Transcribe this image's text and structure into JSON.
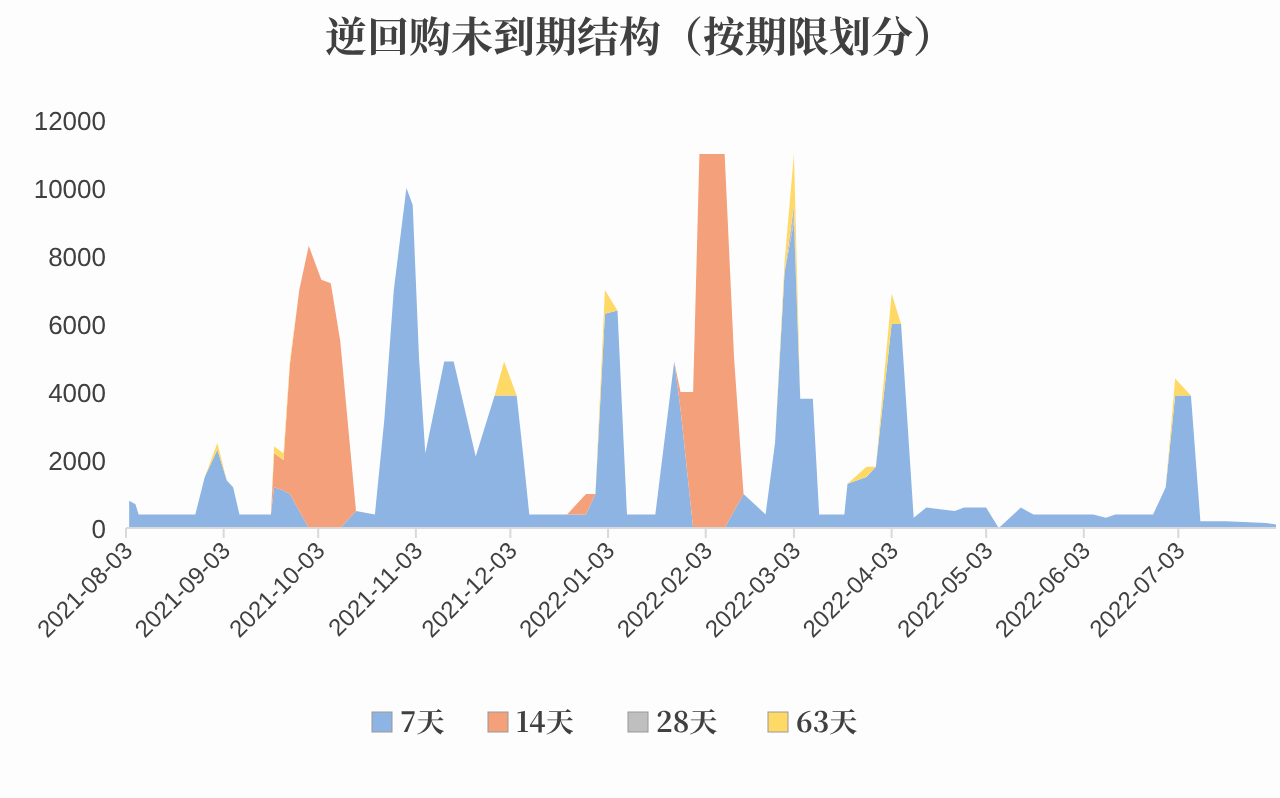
{
  "chart_data": {
    "type": "area",
    "title": "逆回购未到期结构（按期限划分）",
    "stacked": true,
    "legend": "bottom",
    "grid": false,
    "x": [
      "2021-08-04",
      "2021-08-06",
      "2021-08-07",
      "2021-08-25",
      "2021-08-28",
      "2021-09-01",
      "2021-09-04",
      "2021-09-06",
      "2021-09-08",
      "2021-09-18",
      "2021-09-19",
      "2021-09-22",
      "2021-09-24",
      "2021-09-27",
      "2021-09-30",
      "2021-10-04",
      "2021-10-07",
      "2021-10-10",
      "2021-10-13",
      "2021-10-15",
      "2021-10-21",
      "2021-10-24",
      "2021-10-27",
      "2021-10-31",
      "2021-11-02",
      "2021-11-04",
      "2021-11-06",
      "2021-11-12",
      "2021-11-15",
      "2021-11-22",
      "2021-11-28",
      "2021-12-01",
      "2021-12-05",
      "2021-12-07",
      "2021-12-09",
      "2021-12-21",
      "2021-12-27",
      "2021-12-30",
      "2022-01-02",
      "2022-01-06",
      "2022-01-09",
      "2022-01-18",
      "2022-01-24",
      "2022-01-26",
      "2022-01-30",
      "2022-02-01",
      "2022-02-09",
      "2022-02-12",
      "2022-02-15",
      "2022-02-22",
      "2022-02-25",
      "2022-02-28",
      "2022-03-03",
      "2022-03-05",
      "2022-03-09",
      "2022-03-11",
      "2022-03-19",
      "2022-03-20",
      "2022-03-26",
      "2022-03-29",
      "2022-04-03",
      "2022-04-06",
      "2022-04-10",
      "2022-04-14",
      "2022-04-23",
      "2022-04-26",
      "2022-05-03",
      "2022-05-07",
      "2022-05-14",
      "2022-05-18",
      "2022-06-06",
      "2022-06-10",
      "2022-06-13",
      "2022-06-25",
      "2022-06-29",
      "2022-07-02",
      "2022-07-07",
      "2022-07-10",
      "2022-07-18",
      "2022-07-31",
      "2022-08-03"
    ],
    "series": [
      {
        "name": "7天",
        "color": "#8db4e2",
        "values": [
          800,
          700,
          400,
          400,
          1500,
          2300,
          1400,
          1200,
          400,
          400,
          1200,
          1100,
          1000,
          500,
          0,
          0,
          0,
          0,
          300,
          500,
          400,
          3200,
          7000,
          10000,
          9500,
          5000,
          2200,
          4900,
          4900,
          2100,
          3900,
          3900,
          3900,
          2200,
          400,
          400,
          400,
          1000,
          6300,
          6400,
          400,
          400,
          4900,
          3500,
          0,
          0,
          0,
          500,
          1000,
          400,
          2500,
          7500,
          9000,
          3800,
          3800,
          400,
          400,
          1300,
          1500,
          1800,
          6000,
          6000,
          300,
          600,
          500,
          600,
          600,
          0,
          600,
          400,
          400,
          300,
          400,
          400,
          1200,
          3900,
          3900,
          200,
          200,
          150,
          100
        ]
      },
      {
        "name": "14天",
        "color": "#f4a07a",
        "values": [
          0,
          0,
          0,
          0,
          0,
          0,
          0,
          0,
          0,
          0,
          1000,
          900,
          3800,
          6500,
          8300,
          7300,
          7200,
          5500,
          2200,
          0,
          0,
          0,
          0,
          0,
          0,
          0,
          0,
          0,
          0,
          0,
          0,
          0,
          0,
          0,
          0,
          0,
          600,
          0,
          0,
          0,
          0,
          0,
          0,
          500,
          4000,
          11000,
          11000,
          4500,
          0,
          0,
          0,
          0,
          0,
          0,
          0,
          0,
          0,
          0,
          0,
          0,
          0,
          0,
          0,
          0,
          0,
          0,
          0,
          0,
          0,
          0,
          0,
          0,
          0,
          0,
          0,
          0,
          0,
          0,
          0,
          0,
          0
        ]
      },
      {
        "name": "28天",
        "color": "#bfbfbf",
        "values": [
          null,
          null,
          null,
          null,
          null,
          null,
          null,
          null,
          null,
          null,
          null,
          null,
          null,
          null,
          null,
          null,
          null,
          null,
          null,
          null,
          null,
          null,
          null,
          null,
          null,
          null,
          null,
          null,
          null,
          null,
          null,
          null,
          null,
          null,
          null,
          null,
          null,
          null,
          null,
          null,
          null,
          null,
          null,
          null,
          null,
          null,
          null,
          null,
          null,
          null,
          null,
          0,
          500,
          0,
          null,
          null,
          null,
          null,
          null,
          null,
          null,
          null,
          null,
          null,
          null,
          null,
          null,
          null,
          null,
          null,
          null,
          null,
          null,
          null,
          null,
          null,
          null,
          null,
          null,
          null,
          null
        ]
      },
      {
        "name": "63天",
        "color": "#ffd966",
        "values": [
          null,
          null,
          null,
          null,
          0,
          200,
          0,
          null,
          null,
          0,
          200,
          200,
          100,
          0,
          null,
          null,
          null,
          null,
          null,
          null,
          null,
          null,
          null,
          null,
          null,
          null,
          null,
          null,
          null,
          null,
          0,
          1000,
          0,
          null,
          null,
          null,
          null,
          0,
          700,
          0,
          null,
          null,
          null,
          null,
          null,
          null,
          null,
          null,
          null,
          null,
          0,
          300,
          1500,
          0,
          null,
          null,
          null,
          0,
          300,
          0,
          900,
          0,
          null,
          null,
          null,
          null,
          null,
          null,
          null,
          null,
          null,
          null,
          null,
          null,
          0,
          500,
          0,
          null,
          null,
          null,
          null
        ]
      }
    ],
    "xlim": [
      "2021-08-03",
      "2022-08-03"
    ],
    "xticks": [
      "2021-08-03",
      "2021-09-03",
      "2021-10-03",
      "2021-11-03",
      "2021-12-03",
      "2022-01-03",
      "2022-02-03",
      "2022-03-03",
      "2022-04-03",
      "2022-05-03",
      "2022-06-03",
      "2022-07-03"
    ],
    "ylim": [
      0,
      12000
    ],
    "yticks": [
      0,
      2000,
      4000,
      6000,
      8000,
      10000,
      12000
    ]
  }
}
